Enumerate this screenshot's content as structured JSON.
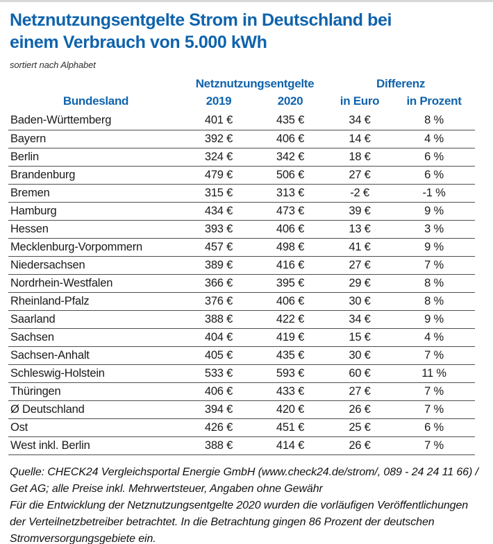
{
  "colors": {
    "accent_blue": "#0f63ac",
    "text_dark": "#1a1a1a",
    "separator_gray": "#4d4d4d",
    "top_border_gray": "#d8d8d8"
  },
  "header": {
    "title_line1": "Netznutzungsentgelte Strom in Deutschland bei",
    "title_line2": "einem Verbrauch von 5.000 kWh",
    "subtitle": "sortiert nach Alphabet"
  },
  "table": {
    "group_headers": {
      "netznutzungsentgelte": "Netznutzungsentgelte",
      "differenz": "Differenz"
    },
    "columns": [
      "Bundesland",
      "2019",
      "2020",
      "in Euro",
      "in Prozent"
    ],
    "rows": [
      [
        "Baden-Württemberg",
        "401 €",
        "435 €",
        "34 €",
        "8 %"
      ],
      [
        "Bayern",
        "392 €",
        "406 €",
        "14 €",
        "4 %"
      ],
      [
        "Berlin",
        "324 €",
        "342 €",
        "18 €",
        "6 %"
      ],
      [
        "Brandenburg",
        "479 €",
        "506 €",
        "27 €",
        "6 %"
      ],
      [
        "Bremen",
        "315 €",
        "313 €",
        "-2 €",
        "-1 %"
      ],
      [
        "Hamburg",
        "434 €",
        "473 €",
        "39 €",
        "9 %"
      ],
      [
        "Hessen",
        "393 €",
        "406 €",
        "13 €",
        "3 %"
      ],
      [
        "Mecklenburg-Vorpommern",
        "457 €",
        "498 €",
        "41 €",
        "9 %"
      ],
      [
        "Niedersachsen",
        "389 €",
        "416 €",
        "27 €",
        "7 %"
      ],
      [
        "Nordrhein-Westfalen",
        "366 €",
        "395 €",
        "29 €",
        "8 %"
      ],
      [
        "Rheinland-Pfalz",
        "376 €",
        "406 €",
        "30 €",
        "8 %"
      ],
      [
        "Saarland",
        "388 €",
        "422 €",
        "34 €",
        "9 %"
      ],
      [
        "Sachsen",
        "404 €",
        "419 €",
        "15 €",
        "4 %"
      ],
      [
        "Sachsen-Anhalt",
        "405 €",
        "435 €",
        "30 €",
        "7 %"
      ],
      [
        "Schleswig-Holstein",
        "533 €",
        "593 €",
        "60 €",
        "11 %"
      ],
      [
        "Thüringen",
        "406 €",
        "433 €",
        "27 €",
        "7 %"
      ],
      [
        "Ø Deutschland",
        "394 €",
        "420 €",
        "26 €",
        "7 %"
      ],
      [
        "Ost",
        "426 €",
        "451 €",
        "25 €",
        "6 %"
      ],
      [
        "West inkl. Berlin",
        "388 €",
        "414 €",
        "26 €",
        "7 %"
      ]
    ]
  },
  "footer": {
    "paragraph1": "Quelle: CHECK24 Vergleichsportal Energie GmbH (www.check24.de/strom/, 089 - 24 24 11 66) / Get AG; alle Preise inkl. Mehrwertsteuer, Angaben ohne Gewähr",
    "paragraph2": "Für die Entwicklung der Netznutzungsentgelte 2020 wurden die vorläufigen Veröffentlichungen der Verteilnetzbetreiber betrachtet. In die Betrachtung gingen 86 Prozent der deutschen Stromversorgungsgebiete ein."
  },
  "chart_data": {
    "type": "table",
    "title": "Netznutzungsentgelte Strom in Deutschland bei einem Verbrauch von 5.000 kWh",
    "subtitle": "sortiert nach Alphabet",
    "columns": [
      "Bundesland",
      "Netznutzungsentgelte 2019 (Euro)",
      "Netznutzungsentgelte 2020 (Euro)",
      "Differenz in Euro",
      "Differenz in Prozent"
    ],
    "rows": [
      [
        "Baden-Württemberg",
        401,
        435,
        34,
        8
      ],
      [
        "Bayern",
        392,
        406,
        14,
        4
      ],
      [
        "Berlin",
        324,
        342,
        18,
        6
      ],
      [
        "Brandenburg",
        479,
        506,
        27,
        6
      ],
      [
        "Bremen",
        315,
        313,
        -2,
        -1
      ],
      [
        "Hamburg",
        434,
        473,
        39,
        9
      ],
      [
        "Hessen",
        393,
        406,
        13,
        3
      ],
      [
        "Mecklenburg-Vorpommern",
        457,
        498,
        41,
        9
      ],
      [
        "Niedersachsen",
        389,
        416,
        27,
        7
      ],
      [
        "Nordrhein-Westfalen",
        366,
        395,
        29,
        8
      ],
      [
        "Rheinland-Pfalz",
        376,
        406,
        30,
        8
      ],
      [
        "Saarland",
        388,
        422,
        34,
        9
      ],
      [
        "Sachsen",
        404,
        419,
        15,
        4
      ],
      [
        "Sachsen-Anhalt",
        405,
        435,
        30,
        7
      ],
      [
        "Schleswig-Holstein",
        533,
        593,
        60,
        11
      ],
      [
        "Thüringen",
        406,
        433,
        27,
        7
      ],
      [
        "Ø Deutschland",
        394,
        420,
        26,
        7
      ],
      [
        "Ost",
        426,
        451,
        25,
        6
      ],
      [
        "West inkl. Berlin",
        388,
        414,
        26,
        7
      ]
    ],
    "source_note": "Quelle: CHECK24 Vergleichsportal Energie GmbH (www.check24.de/strom/, 089 - 24 24 11 66) / Get AG; alle Preise inkl. Mehrwertsteuer, Angaben ohne Gewähr"
  }
}
